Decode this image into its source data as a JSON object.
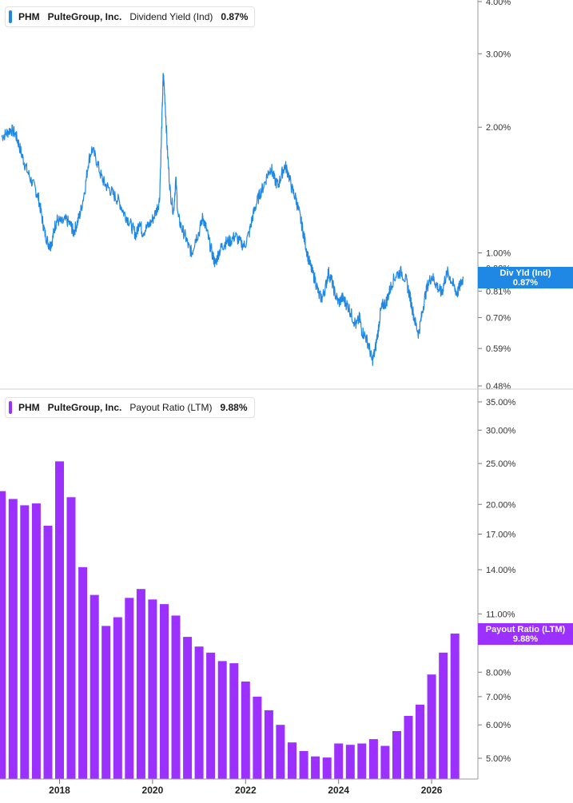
{
  "chart_data": [
    {
      "type": "line",
      "series": [
        {
          "name": "Dividend Yield (Ind)",
          "color": "#1f88e5"
        }
      ],
      "legend": {
        "ticker": "PHM",
        "company": "PulteGroup, Inc.",
        "metric": "Dividend Yield (Ind)",
        "value": "0.87%"
      },
      "tag": {
        "line1": "Div Yld (Ind)",
        "line2": "0.87%",
        "color": "#1f88e5"
      },
      "y_scale": "log",
      "y_ticks": [
        {
          "v": 4.0,
          "label": "4.00%"
        },
        {
          "v": 3.0,
          "label": "3.00%"
        },
        {
          "v": 2.0,
          "label": "2.00%"
        },
        {
          "v": 1.0,
          "label": "1.00%"
        },
        {
          "v": 0.92,
          "label": "0.92%"
        },
        {
          "v": 0.81,
          "label": "0.81%"
        },
        {
          "v": 0.7,
          "label": "0.70%"
        },
        {
          "v": 0.59,
          "label": "0.59%"
        },
        {
          "v": 0.48,
          "label": "0.48%"
        }
      ],
      "points": [
        [
          2016.75,
          1.9
        ],
        [
          2016.85,
          1.93
        ],
        [
          2016.95,
          1.98
        ],
        [
          2017.05,
          1.93
        ],
        [
          2017.12,
          1.83
        ],
        [
          2017.2,
          1.7
        ],
        [
          2017.28,
          1.6
        ],
        [
          2017.38,
          1.5
        ],
        [
          2017.48,
          1.42
        ],
        [
          2017.55,
          1.35
        ],
        [
          2017.62,
          1.22
        ],
        [
          2017.68,
          1.12
        ],
        [
          2017.75,
          1.06
        ],
        [
          2017.8,
          1.04
        ],
        [
          2017.85,
          1.08
        ],
        [
          2017.9,
          1.16
        ],
        [
          2017.95,
          1.2
        ],
        [
          2018.05,
          1.18
        ],
        [
          2018.15,
          1.2
        ],
        [
          2018.25,
          1.16
        ],
        [
          2018.3,
          1.12
        ],
        [
          2018.38,
          1.18
        ],
        [
          2018.45,
          1.25
        ],
        [
          2018.55,
          1.43
        ],
        [
          2018.62,
          1.65
        ],
        [
          2018.7,
          1.78
        ],
        [
          2018.8,
          1.66
        ],
        [
          2018.9,
          1.52
        ],
        [
          2018.98,
          1.46
        ],
        [
          2019.08,
          1.42
        ],
        [
          2019.18,
          1.37
        ],
        [
          2019.28,
          1.33
        ],
        [
          2019.38,
          1.25
        ],
        [
          2019.48,
          1.2
        ],
        [
          2019.58,
          1.14
        ],
        [
          2019.65,
          1.1
        ],
        [
          2019.72,
          1.2
        ],
        [
          2019.78,
          1.12
        ],
        [
          2019.88,
          1.15
        ],
        [
          2019.98,
          1.19
        ],
        [
          2020.08,
          1.26
        ],
        [
          2020.15,
          1.34
        ],
        [
          2020.2,
          2.05
        ],
        [
          2020.23,
          2.7
        ],
        [
          2020.27,
          2.3
        ],
        [
          2020.32,
          1.75
        ],
        [
          2020.38,
          1.4
        ],
        [
          2020.45,
          1.25
        ],
        [
          2020.5,
          1.5
        ],
        [
          2020.55,
          1.22
        ],
        [
          2020.62,
          1.15
        ],
        [
          2020.7,
          1.1
        ],
        [
          2020.78,
          1.03
        ],
        [
          2020.85,
          1.0
        ],
        [
          2020.92,
          1.08
        ],
        [
          2021.0,
          1.12
        ],
        [
          2021.08,
          1.22
        ],
        [
          2021.15,
          1.15
        ],
        [
          2021.22,
          1.06
        ],
        [
          2021.3,
          0.98
        ],
        [
          2021.35,
          0.94
        ],
        [
          2021.42,
          1.0
        ],
        [
          2021.5,
          1.04
        ],
        [
          2021.58,
          1.06
        ],
        [
          2021.68,
          1.07
        ],
        [
          2021.78,
          1.1
        ],
        [
          2021.88,
          1.06
        ],
        [
          2021.98,
          1.04
        ],
        [
          2022.08,
          1.12
        ],
        [
          2022.15,
          1.22
        ],
        [
          2022.22,
          1.3
        ],
        [
          2022.3,
          1.38
        ],
        [
          2022.38,
          1.44
        ],
        [
          2022.48,
          1.55
        ],
        [
          2022.55,
          1.6
        ],
        [
          2022.62,
          1.5
        ],
        [
          2022.7,
          1.45
        ],
        [
          2022.78,
          1.55
        ],
        [
          2022.85,
          1.62
        ],
        [
          2022.92,
          1.55
        ],
        [
          2023.0,
          1.42
        ],
        [
          2023.08,
          1.35
        ],
        [
          2023.15,
          1.25
        ],
        [
          2023.22,
          1.15
        ],
        [
          2023.28,
          1.06
        ],
        [
          2023.35,
          0.97
        ],
        [
          2023.42,
          0.91
        ],
        [
          2023.5,
          0.86
        ],
        [
          2023.58,
          0.79
        ],
        [
          2023.65,
          0.78
        ],
        [
          2023.72,
          0.83
        ],
        [
          2023.78,
          0.9
        ],
        [
          2023.85,
          0.86
        ],
        [
          2023.92,
          0.8
        ],
        [
          2024.0,
          0.76
        ],
        [
          2024.08,
          0.78
        ],
        [
          2024.15,
          0.76
        ],
        [
          2024.22,
          0.74
        ],
        [
          2024.3,
          0.7
        ],
        [
          2024.38,
          0.67
        ],
        [
          2024.45,
          0.7
        ],
        [
          2024.5,
          0.65
        ],
        [
          2024.58,
          0.63
        ],
        [
          2024.65,
          0.6
        ],
        [
          2024.72,
          0.55
        ],
        [
          2024.78,
          0.58
        ],
        [
          2024.85,
          0.65
        ],
        [
          2024.9,
          0.72
        ],
        [
          2024.95,
          0.75
        ],
        [
          2025.02,
          0.76
        ],
        [
          2025.08,
          0.8
        ],
        [
          2025.15,
          0.85
        ],
        [
          2025.25,
          0.89
        ],
        [
          2025.35,
          0.9
        ],
        [
          2025.45,
          0.86
        ],
        [
          2025.52,
          0.8
        ],
        [
          2025.58,
          0.74
        ],
        [
          2025.65,
          0.68
        ],
        [
          2025.72,
          0.64
        ],
        [
          2025.78,
          0.7
        ],
        [
          2025.85,
          0.78
        ],
        [
          2025.92,
          0.84
        ],
        [
          2026.0,
          0.88
        ],
        [
          2026.08,
          0.85
        ],
        [
          2026.15,
          0.82
        ],
        [
          2026.22,
          0.8
        ],
        [
          2026.28,
          0.86
        ],
        [
          2026.35,
          0.9
        ],
        [
          2026.42,
          0.86
        ],
        [
          2026.5,
          0.82
        ],
        [
          2026.55,
          0.8
        ],
        [
          2026.62,
          0.84
        ],
        [
          2026.68,
          0.87
        ]
      ]
    },
    {
      "type": "bar",
      "series": [
        {
          "name": "Payout Ratio (LTM)",
          "color": "#9b30ff"
        }
      ],
      "legend": {
        "ticker": "PHM",
        "company": "PulteGroup, Inc.",
        "metric": "Payout Ratio (LTM)",
        "value": "9.88%"
      },
      "tag": {
        "line1": "Payout Ratio (LTM)",
        "line2": "9.88%",
        "color": "#9b30ff"
      },
      "y_scale": "log",
      "y_ticks": [
        {
          "v": 35,
          "label": "35.00%"
        },
        {
          "v": 30,
          "label": "30.00%"
        },
        {
          "v": 25,
          "label": "25.00%"
        },
        {
          "v": 20,
          "label": "20.00%"
        },
        {
          "v": 17,
          "label": "17.00%"
        },
        {
          "v": 14,
          "label": "14.00%"
        },
        {
          "v": 11,
          "label": "11.00%"
        },
        {
          "v": 8,
          "label": "8.00%"
        },
        {
          "v": 7,
          "label": "7.00%"
        },
        {
          "v": 6,
          "label": "6.00%"
        },
        {
          "v": 5,
          "label": "5.00%"
        }
      ],
      "bars": [
        [
          2016.75,
          21.5
        ],
        [
          2017.0,
          20.6
        ],
        [
          2017.25,
          19.9
        ],
        [
          2017.5,
          20.1
        ],
        [
          2017.75,
          17.8
        ],
        [
          2018.0,
          25.3
        ],
        [
          2018.25,
          20.8
        ],
        [
          2018.5,
          14.2
        ],
        [
          2018.75,
          12.2
        ],
        [
          2019.0,
          10.3
        ],
        [
          2019.25,
          10.8
        ],
        [
          2019.5,
          12.0
        ],
        [
          2019.75,
          12.6
        ],
        [
          2020.0,
          11.9
        ],
        [
          2020.25,
          11.6
        ],
        [
          2020.5,
          10.9
        ],
        [
          2020.75,
          9.7
        ],
        [
          2021.0,
          9.2
        ],
        [
          2021.25,
          8.9
        ],
        [
          2021.5,
          8.5
        ],
        [
          2021.75,
          8.4
        ],
        [
          2022.0,
          7.6
        ],
        [
          2022.25,
          7.0
        ],
        [
          2022.5,
          6.5
        ],
        [
          2022.75,
          6.0
        ],
        [
          2023.0,
          5.45
        ],
        [
          2023.25,
          5.2
        ],
        [
          2023.5,
          5.05
        ],
        [
          2023.75,
          5.02
        ],
        [
          2024.0,
          5.42
        ],
        [
          2024.25,
          5.38
        ],
        [
          2024.5,
          5.42
        ],
        [
          2024.75,
          5.55
        ],
        [
          2025.0,
          5.35
        ],
        [
          2025.25,
          5.8
        ],
        [
          2025.5,
          6.3
        ],
        [
          2025.75,
          6.7
        ],
        [
          2026.0,
          7.9
        ],
        [
          2026.25,
          8.9
        ],
        [
          2026.5,
          9.88
        ]
      ]
    }
  ],
  "x_axis": {
    "ticks": [
      {
        "v": 2018,
        "label": "2018"
      },
      {
        "v": 2020,
        "label": "2020"
      },
      {
        "v": 2022,
        "label": "2022"
      },
      {
        "v": 2024,
        "label": "2024"
      },
      {
        "v": 2026,
        "label": "2026"
      }
    ]
  }
}
